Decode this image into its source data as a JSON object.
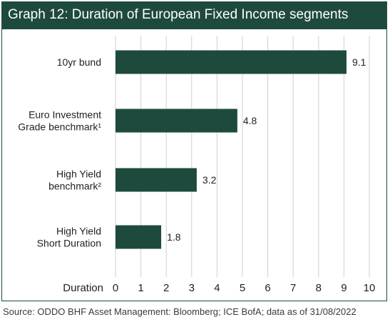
{
  "header": {
    "title": "Graph 12: Duration of European Fixed Income segments"
  },
  "footer": {
    "source": "Source: ODDO BHF Asset Management: Bloomberg; ICE BofA; data as of 31/08/2022"
  },
  "colors": {
    "bar": "#1e4a3d",
    "header": "#1e4a3d",
    "grid": "#cfcfcf"
  },
  "chart_data": {
    "type": "bar",
    "orientation": "horizontal",
    "title": "Graph 12: Duration of European Fixed Income segments",
    "xlabel": "Duration",
    "xlim": [
      0,
      10
    ],
    "xticks": [
      "0",
      "1",
      "2",
      "3",
      "4",
      "5",
      "6",
      "7",
      "8",
      "9",
      "10"
    ],
    "grid": "vertical",
    "categories": [
      [
        "10yr bund"
      ],
      [
        "Euro Investment",
        "Grade benchmark¹"
      ],
      [
        "High Yield",
        "benchmark²"
      ],
      [
        "High Yield",
        "Short Duration"
      ]
    ],
    "values": [
      9.1,
      4.8,
      3.2,
      1.8
    ],
    "value_labels": [
      "9.1",
      "4.8",
      "3.2",
      "1.8"
    ]
  }
}
